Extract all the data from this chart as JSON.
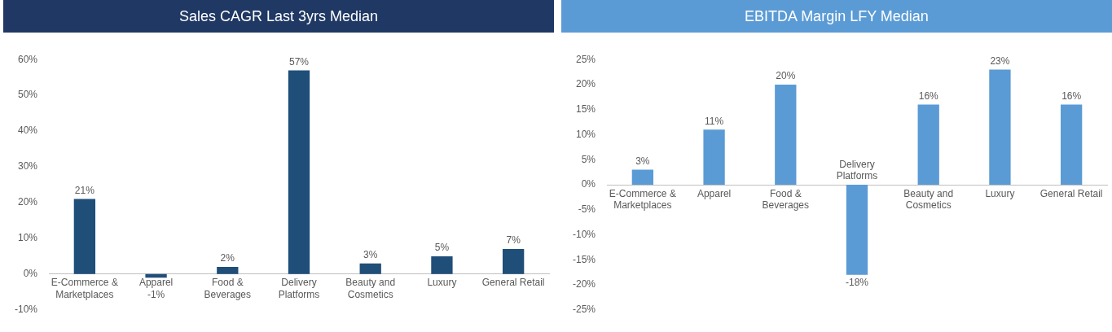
{
  "chart_data": [
    {
      "type": "bar",
      "title": "Sales CAGR Last 3yrs Median",
      "categories": [
        "E-Commerce & Marketplaces",
        "Apparel",
        "Food & Beverages",
        "Delivery Platforms",
        "Beauty and Cosmetics",
        "Luxury",
        "General Retail"
      ],
      "color": "#1f4e79",
      "values": [
        21,
        -1,
        2,
        57,
        3,
        5,
        7
      ],
      "value_labels": [
        "21%",
        "-1%",
        "2%",
        "57%",
        "3%",
        "5%",
        "7%"
      ],
      "ylim": [
        -10,
        60
      ],
      "yticks": [
        {
          "value": -10,
          "label": "-10%"
        },
        {
          "value": 0,
          "label": "0%"
        },
        {
          "value": 10,
          "label": "10%"
        },
        {
          "value": 20,
          "label": "20%"
        },
        {
          "value": 30,
          "label": "30%"
        },
        {
          "value": 40,
          "label": "40%"
        },
        {
          "value": 50,
          "label": "50%"
        },
        {
          "value": 60,
          "label": "60%"
        }
      ],
      "grid": false,
      "legend": false
    },
    {
      "type": "bar",
      "title": "EBITDA Margin LFY Median",
      "categories": [
        "E-Commerce & Marketplaces",
        "Apparel",
        "Food & Beverages",
        "Delivery Platforms",
        "Beauty and Cosmetics",
        "Luxury",
        "General Retail"
      ],
      "color": "#5b9bd5",
      "values": [
        3,
        11,
        20,
        -18,
        16,
        23,
        16
      ],
      "value_labels": [
        "3%",
        "11%",
        "20%",
        "-18%",
        "16%",
        "23%",
        "16%"
      ],
      "ylim": [
        -25,
        25
      ],
      "yticks": [
        {
          "value": -25,
          "label": "-25%"
        },
        {
          "value": -20,
          "label": "-20%"
        },
        {
          "value": -15,
          "label": "-15%"
        },
        {
          "value": -10,
          "label": "-10%"
        },
        {
          "value": -5,
          "label": "-5%"
        },
        {
          "value": 0,
          "label": "0%"
        },
        {
          "value": 5,
          "label": "5%"
        },
        {
          "value": 10,
          "label": "10%"
        },
        {
          "value": 15,
          "label": "15%"
        },
        {
          "value": 20,
          "label": "20%"
        },
        {
          "value": 25,
          "label": "25%"
        }
      ],
      "grid": false,
      "legend": false
    }
  ]
}
